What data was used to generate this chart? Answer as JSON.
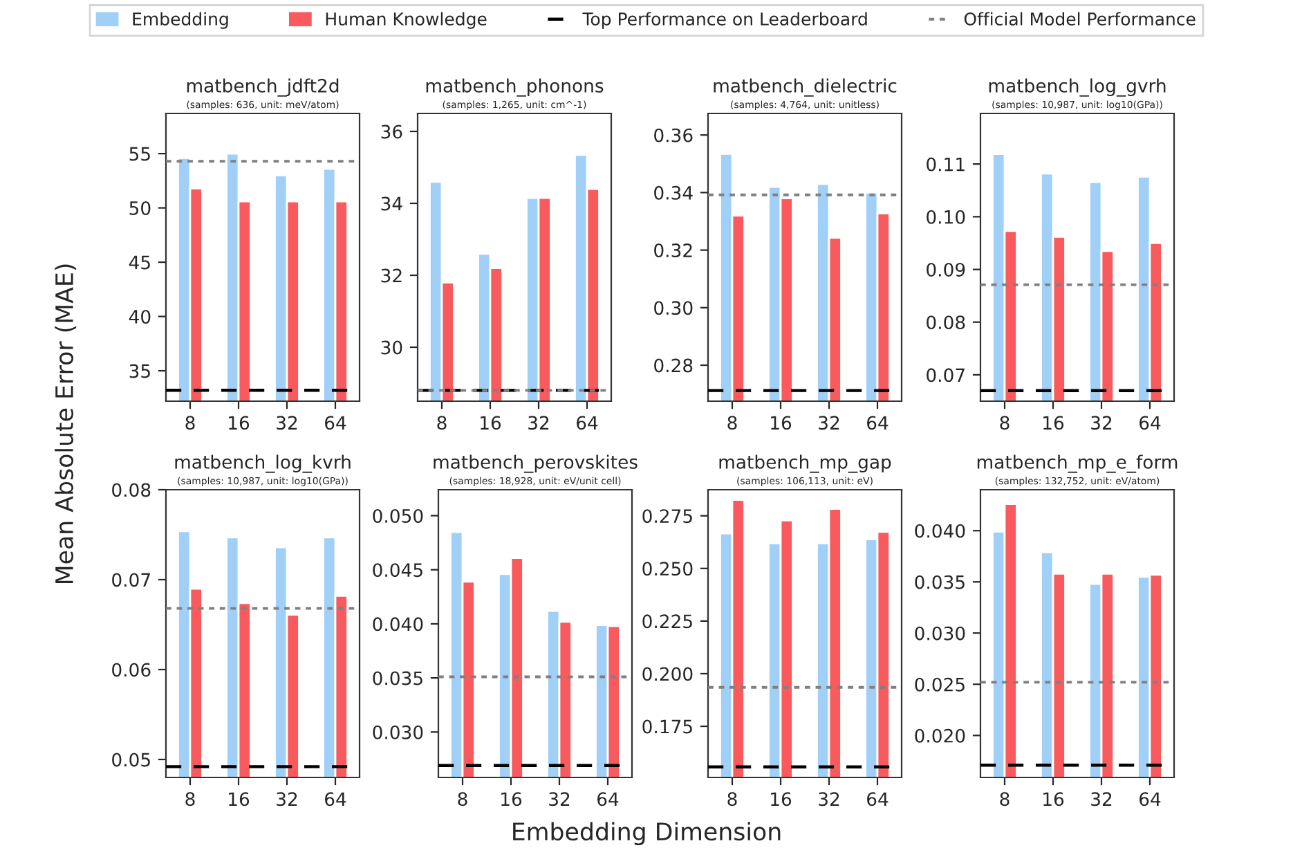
{
  "chart_data": [
    {
      "type": "bar",
      "title": "matbench_jdft2d",
      "subtitle": "(samples: 636, unit: meV/atom)",
      "ylabel": "Mean Absolute Error (MAE)",
      "legend": "top",
      "categories": [
        "8",
        "16",
        "32",
        "64"
      ],
      "series": [
        {
          "name": "Embedding",
          "color": "#a0d0f8",
          "values": [
            54.6,
            55.0,
            53.0,
            53.6
          ]
        },
        {
          "name": "Human Knowledge",
          "color": "#f85a5e",
          "values": [
            51.8,
            50.6,
            50.6,
            50.6
          ]
        }
      ],
      "ylim": [
        32.2,
        58.7
      ],
      "yticks": [
        35,
        40,
        45,
        50,
        55
      ],
      "ref_lines": [
        {
          "axis": "y",
          "value": 33.2,
          "label": "Top Performance on Leaderboard",
          "color": "#000000",
          "line_style": "dashed"
        },
        {
          "axis": "y",
          "value": 54.3,
          "label": "Official Model Performance",
          "color": "#808080",
          "line_style": "dotted"
        }
      ]
    },
    {
      "type": "bar",
      "title": "matbench_phonons",
      "subtitle": "(samples: 1,265, unit: cm^-1)",
      "categories": [
        "8",
        "16",
        "32",
        "64"
      ],
      "series": [
        {
          "color": "#a0d0f8",
          "values": [
            34.6,
            32.6,
            34.15,
            35.35
          ]
        },
        {
          "color": "#f85a5e",
          "values": [
            31.8,
            32.2,
            34.15,
            34.4
          ]
        }
      ],
      "ylim": [
        28.5,
        36.5
      ],
      "yticks": [
        30,
        32,
        34,
        36
      ],
      "ref_lines": [
        {
          "axis": "y",
          "value": 28.8,
          "color": "#000000",
          "line_style": "dashed"
        },
        {
          "axis": "y",
          "value": 28.8,
          "color": "#808080",
          "line_style": "dotted"
        }
      ]
    },
    {
      "type": "bar",
      "title": "matbench_dielectric",
      "subtitle": "(samples: 4,764, unit: unitless)",
      "categories": [
        "8",
        "16",
        "32",
        "64"
      ],
      "series": [
        {
          "color": "#a0d0f8",
          "values": [
            0.3535,
            0.342,
            0.343,
            0.34
          ]
        },
        {
          "color": "#f85a5e",
          "values": [
            0.332,
            0.338,
            0.3243,
            0.3328
          ]
        }
      ],
      "ylim": [
        0.2675,
        0.3675
      ],
      "yticks": [
        {
          "value": 0.28,
          "label": "0.28"
        },
        {
          "value": 0.3,
          "label": "0.30"
        },
        {
          "value": 0.32,
          "label": "0.32"
        },
        {
          "value": 0.34,
          "label": "0.34"
        },
        {
          "value": 0.36,
          "label": "0.36"
        }
      ],
      "ref_lines": [
        {
          "axis": "y",
          "value": 0.2712,
          "color": "#000000",
          "line_style": "dashed"
        },
        {
          "axis": "y",
          "value": 0.3392,
          "color": "#808080",
          "line_style": "dotted"
        }
      ]
    },
    {
      "type": "bar",
      "title": "matbench_log_gvrh",
      "subtitle": "(samples: 10,987, unit: log10(GPa))",
      "categories": [
        "8",
        "16",
        "32",
        "64"
      ],
      "series": [
        {
          "color": "#a0d0f8",
          "values": [
            0.1119,
            0.1082,
            0.1066,
            0.1076
          ]
        },
        {
          "color": "#f85a5e",
          "values": [
            0.0973,
            0.0962,
            0.0935,
            0.095
          ]
        }
      ],
      "ylim": [
        0.065,
        0.1196
      ],
      "yticks": [
        {
          "value": 0.07,
          "label": "0.07"
        },
        {
          "value": 0.08,
          "label": "0.08"
        },
        {
          "value": 0.09,
          "label": "0.09"
        },
        {
          "value": 0.1,
          "label": "0.10"
        },
        {
          "value": 0.11,
          "label": "0.11"
        }
      ],
      "ref_lines": [
        {
          "axis": "y",
          "value": 0.067,
          "color": "#000000",
          "line_style": "dashed"
        },
        {
          "axis": "y",
          "value": 0.0871,
          "color": "#808080",
          "line_style": "dotted"
        }
      ]
    },
    {
      "type": "bar",
      "title": "matbench_log_kvrh",
      "subtitle": "(samples: 10,987, unit: log10(GPa))",
      "categories": [
        "8",
        "16",
        "32",
        "64"
      ],
      "series": [
        {
          "color": "#a0d0f8",
          "values": [
            0.0754,
            0.0747,
            0.0736,
            0.0747
          ]
        },
        {
          "color": "#f85a5e",
          "values": [
            0.069,
            0.0674,
            0.0661,
            0.0682
          ]
        }
      ],
      "ylim": [
        0.048,
        0.08
      ],
      "yticks": [
        {
          "value": 0.05,
          "label": "0.05"
        },
        {
          "value": 0.06,
          "label": "0.06"
        },
        {
          "value": 0.07,
          "label": "0.07"
        },
        {
          "value": 0.08,
          "label": "0.08"
        }
      ],
      "ref_lines": [
        {
          "axis": "y",
          "value": 0.0492,
          "color": "#000000",
          "line_style": "dashed"
        },
        {
          "axis": "y",
          "value": 0.0668,
          "color": "#808080",
          "line_style": "dotted"
        }
      ]
    },
    {
      "type": "bar",
      "title": "matbench_perovskites",
      "xlabel": "Embedding Dimension",
      "subtitle": "(samples: 18,928, unit: eV/unit cell)",
      "categories": [
        "8",
        "16",
        "32",
        "64"
      ],
      "series": [
        {
          "color": "#a0d0f8",
          "values": [
            0.0485,
            0.0446,
            0.0412,
            0.0399
          ]
        },
        {
          "color": "#f85a5e",
          "values": [
            0.0439,
            0.0461,
            0.0402,
            0.0398
          ]
        }
      ],
      "ylim": [
        0.0258,
        0.0524
      ],
      "yticks": [
        {
          "value": 0.03,
          "label": "0.030"
        },
        {
          "value": 0.035,
          "label": "0.035"
        },
        {
          "value": 0.04,
          "label": "0.040"
        },
        {
          "value": 0.045,
          "label": "0.045"
        },
        {
          "value": 0.05,
          "label": "0.050"
        }
      ],
      "ref_lines": [
        {
          "axis": "y",
          "value": 0.0269,
          "color": "#000000",
          "line_style": "dashed"
        },
        {
          "axis": "y",
          "value": 0.0351,
          "color": "#808080",
          "line_style": "dotted"
        }
      ]
    },
    {
      "type": "bar",
      "title": "matbench_mp_gap",
      "subtitle": "(samples: 106,113, unit: eV)",
      "categories": [
        "8",
        "16",
        "32",
        "64"
      ],
      "series": [
        {
          "color": "#a0d0f8",
          "values": [
            0.2667,
            0.262,
            0.262,
            0.2639
          ]
        },
        {
          "color": "#f85a5e",
          "values": [
            0.2826,
            0.2728,
            0.2783,
            0.2674
          ]
        }
      ],
      "ylim": [
        0.1507,
        0.2874
      ],
      "yticks": [
        {
          "value": 0.175,
          "label": "0.175"
        },
        {
          "value": 0.2,
          "label": "0.200"
        },
        {
          "value": 0.225,
          "label": "0.225"
        },
        {
          "value": 0.25,
          "label": "0.250"
        },
        {
          "value": 0.275,
          "label": "0.275"
        }
      ],
      "ref_lines": [
        {
          "axis": "y",
          "value": 0.1557,
          "color": "#000000",
          "line_style": "dashed"
        },
        {
          "axis": "y",
          "value": 0.1935,
          "color": "#808080",
          "line_style": "dotted"
        }
      ]
    },
    {
      "type": "bar",
      "title": "matbench_mp_e_form",
      "subtitle": "(samples: 132,752, unit: eV/atom)",
      "categories": [
        "8",
        "16",
        "32",
        "64"
      ],
      "series": [
        {
          "color": "#a0d0f8",
          "values": [
            0.0399,
            0.0379,
            0.0348,
            0.0355
          ]
        },
        {
          "color": "#f85a5e",
          "values": [
            0.0426,
            0.0358,
            0.0358,
            0.0357
          ]
        }
      ],
      "ylim": [
        0.0159,
        0.044
      ],
      "yticks": [
        {
          "value": 0.02,
          "label": "0.020"
        },
        {
          "value": 0.025,
          "label": "0.025"
        },
        {
          "value": 0.03,
          "label": "0.030"
        },
        {
          "value": 0.035,
          "label": "0.035"
        },
        {
          "value": 0.04,
          "label": "0.040"
        }
      ],
      "ref_lines": [
        {
          "axis": "y",
          "value": 0.0171,
          "color": "#000000",
          "line_style": "dashed"
        },
        {
          "axis": "y",
          "value": 0.0252,
          "color": "#808080",
          "line_style": "dotted"
        }
      ]
    }
  ]
}
